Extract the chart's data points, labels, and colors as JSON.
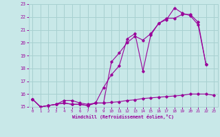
{
  "xlabel": "Windchill (Refroidissement éolien,°C)",
  "bg_color": "#c8e8e8",
  "grid_color": "#a8d0d0",
  "line_color": "#990099",
  "xlim": [
    -0.5,
    23.5
  ],
  "ylim": [
    15,
    23
  ],
  "xticks": [
    0,
    1,
    2,
    3,
    4,
    5,
    6,
    7,
    8,
    9,
    10,
    11,
    12,
    13,
    14,
    15,
    16,
    17,
    18,
    19,
    20,
    21,
    22,
    23
  ],
  "yticks": [
    15,
    16,
    17,
    18,
    19,
    20,
    21,
    22,
    23
  ],
  "line1_x": [
    0,
    1,
    2,
    3,
    4,
    5,
    6,
    7,
    8,
    9,
    10,
    11,
    12,
    13,
    14,
    15,
    16,
    17,
    18,
    19,
    20,
    21,
    22
  ],
  "line1_y": [
    15.6,
    15.0,
    15.1,
    15.2,
    15.3,
    15.2,
    15.2,
    15.1,
    15.3,
    16.5,
    17.5,
    18.2,
    20.3,
    20.7,
    17.8,
    20.6,
    21.5,
    21.8,
    22.7,
    22.3,
    22.1,
    21.4,
    18.3
  ],
  "line2_x": [
    0,
    1,
    2,
    3,
    4,
    5,
    6,
    7,
    8,
    9,
    10,
    11,
    12,
    13,
    14,
    15,
    16,
    17,
    18,
    19,
    20,
    21,
    22,
    23
  ],
  "line2_y": [
    15.6,
    15.0,
    15.1,
    15.2,
    15.5,
    15.5,
    15.3,
    15.2,
    15.3,
    15.3,
    15.35,
    15.4,
    15.5,
    15.55,
    15.65,
    15.7,
    15.75,
    15.8,
    15.85,
    15.9,
    16.0,
    16.0,
    16.0,
    15.9
  ],
  "line3_x": [
    0,
    1,
    2,
    3,
    4,
    5,
    6,
    7,
    8,
    9,
    10,
    11,
    12,
    13,
    14,
    15,
    16,
    17,
    18,
    19,
    20,
    21,
    22
  ],
  "line3_y": [
    15.6,
    15.0,
    15.1,
    15.2,
    15.3,
    15.2,
    15.2,
    15.1,
    15.3,
    15.3,
    18.5,
    19.2,
    20.0,
    20.5,
    20.2,
    20.7,
    21.5,
    21.9,
    21.9,
    22.2,
    22.2,
    21.6,
    18.3
  ]
}
